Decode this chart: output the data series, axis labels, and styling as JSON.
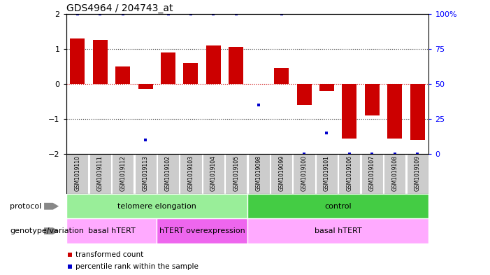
{
  "title": "GDS4964 / 204743_at",
  "samples": [
    "GSM1019110",
    "GSM1019111",
    "GSM1019112",
    "GSM1019113",
    "GSM1019102",
    "GSM1019103",
    "GSM1019104",
    "GSM1019105",
    "GSM1019098",
    "GSM1019099",
    "GSM1019100",
    "GSM1019101",
    "GSM1019106",
    "GSM1019107",
    "GSM1019108",
    "GSM1019109"
  ],
  "bar_values": [
    1.3,
    1.25,
    0.5,
    -0.15,
    0.9,
    0.6,
    1.1,
    1.05,
    0.0,
    0.45,
    -0.6,
    -0.2,
    -1.55,
    -0.9,
    -1.55,
    -1.6
  ],
  "percentile_values": [
    100,
    100,
    100,
    10,
    100,
    100,
    100,
    100,
    35,
    100,
    0,
    15,
    0,
    0,
    0,
    0
  ],
  "ylim": [
    -2,
    2
  ],
  "yticks": [
    -2,
    -1,
    0,
    1,
    2
  ],
  "right_ylabels": [
    "0",
    "25",
    "50",
    "75",
    "100%"
  ],
  "bar_color": "#cc0000",
  "percentile_color": "#0000cc",
  "protocol_groups": [
    {
      "label": "telomere elongation",
      "start": 0,
      "end": 8,
      "color": "#99ee99"
    },
    {
      "label": "control",
      "start": 8,
      "end": 16,
      "color": "#44cc44"
    }
  ],
  "genotype_groups": [
    {
      "label": "basal hTERT",
      "start": 0,
      "end": 4,
      "color": "#ffaaff"
    },
    {
      "label": "hTERT overexpression",
      "start": 4,
      "end": 8,
      "color": "#ee66ee"
    },
    {
      "label": "basal hTERT",
      "start": 8,
      "end": 16,
      "color": "#ffaaff"
    }
  ],
  "legend_items": [
    {
      "label": "transformed count",
      "color": "#cc0000"
    },
    {
      "label": "percentile rank within the sample",
      "color": "#0000cc"
    }
  ],
  "bg_color": "#ffffff",
  "tick_label_bg": "#cccccc",
  "left_labels": [
    "protocol",
    "genotype/variation"
  ]
}
